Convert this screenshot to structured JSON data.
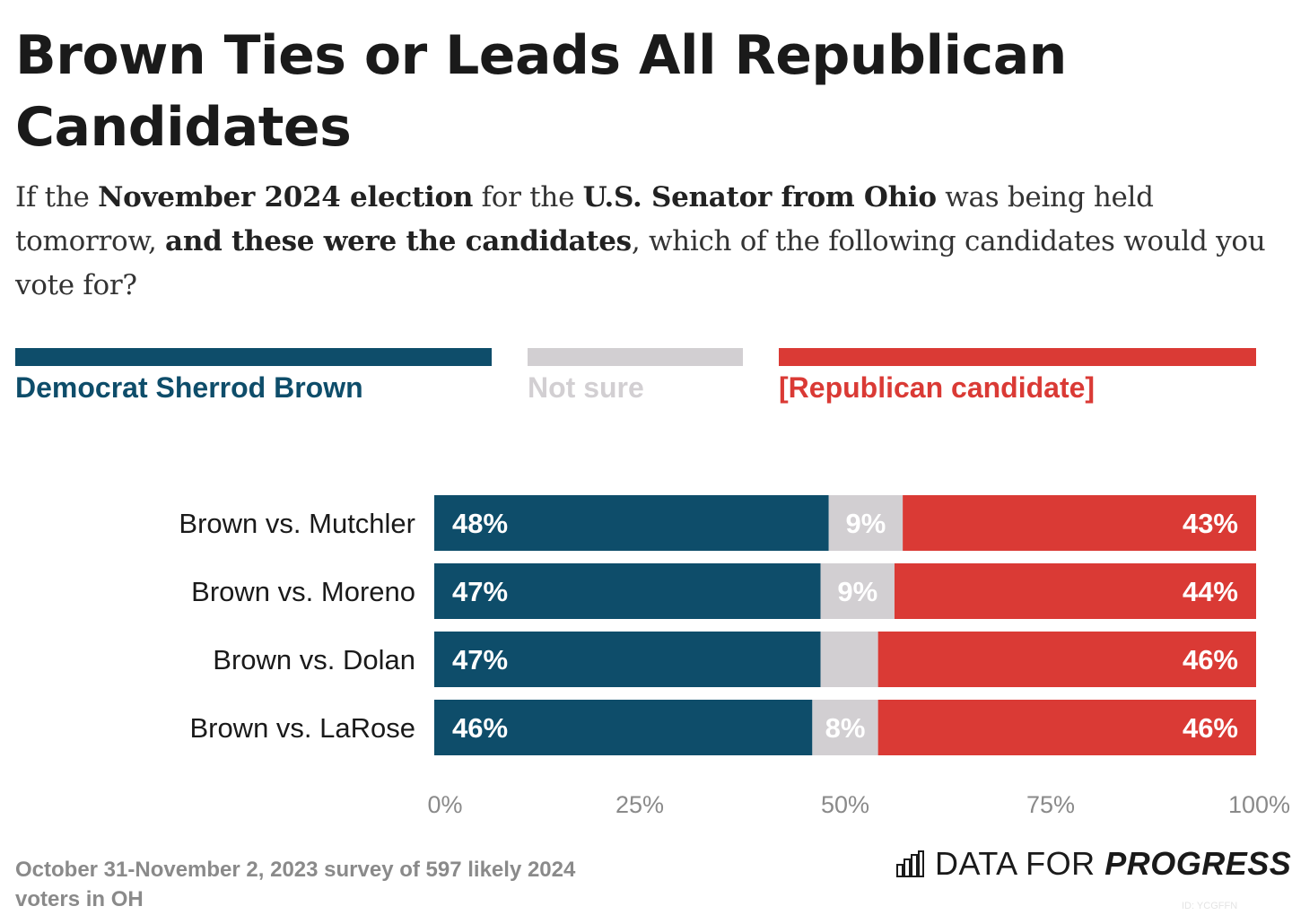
{
  "title": "Brown Ties or Leads All Republican Candidates",
  "subtitle": {
    "p1": "If the ",
    "b1": "November 2024 election",
    "p2": " for the ",
    "b2": "U.S. Senator from Ohio",
    "p3": " was being held tomorrow, ",
    "b3": "and these were the candidates",
    "p4": ", which of the following candidates would you vote for?"
  },
  "legend": [
    {
      "label": "Democrat Sherrod Brown",
      "color": "#0e4d6a"
    },
    {
      "label": "Not sure",
      "color": "#d2cfd2"
    },
    {
      "label": "[Republican candidate]",
      "color": "#da3a35"
    }
  ],
  "chart_data": {
    "type": "bar",
    "orientation": "horizontal",
    "stacked": true,
    "categories": [
      "Brown vs. Mutchler",
      "Brown vs. Moreno",
      "Brown vs. Dolan",
      "Brown vs. LaRose"
    ],
    "series": [
      {
        "name": "Democrat Sherrod Brown",
        "values": [
          48,
          47,
          47,
          46
        ],
        "labels": [
          "48%",
          "47%",
          "47%",
          "46%"
        ],
        "color": "#0e4d6a"
      },
      {
        "name": "Not sure",
        "values": [
          9,
          9,
          7,
          8
        ],
        "labels": [
          "9%",
          "9%",
          "",
          "8%"
        ],
        "color": "#d2cfd2"
      },
      {
        "name": "[Republican candidate]",
        "values": [
          43,
          44,
          46,
          46
        ],
        "labels": [
          "43%",
          "44%",
          "46%",
          "46%"
        ],
        "color": "#da3a35"
      }
    ],
    "xlim": [
      0,
      100
    ],
    "xticks": [
      "0%",
      "25%",
      "50%",
      "75%",
      "100%"
    ],
    "grid": false,
    "legend_position": "top"
  },
  "footer": "October 31-November 2, 2023 survey of 597 likely 2024 voters in OH",
  "brand": {
    "regular": "DATA FOR ",
    "bold": "PROGRESS",
    "icon": "bar-chart-logo-icon"
  },
  "chart_id": "ID: YCGFFN"
}
